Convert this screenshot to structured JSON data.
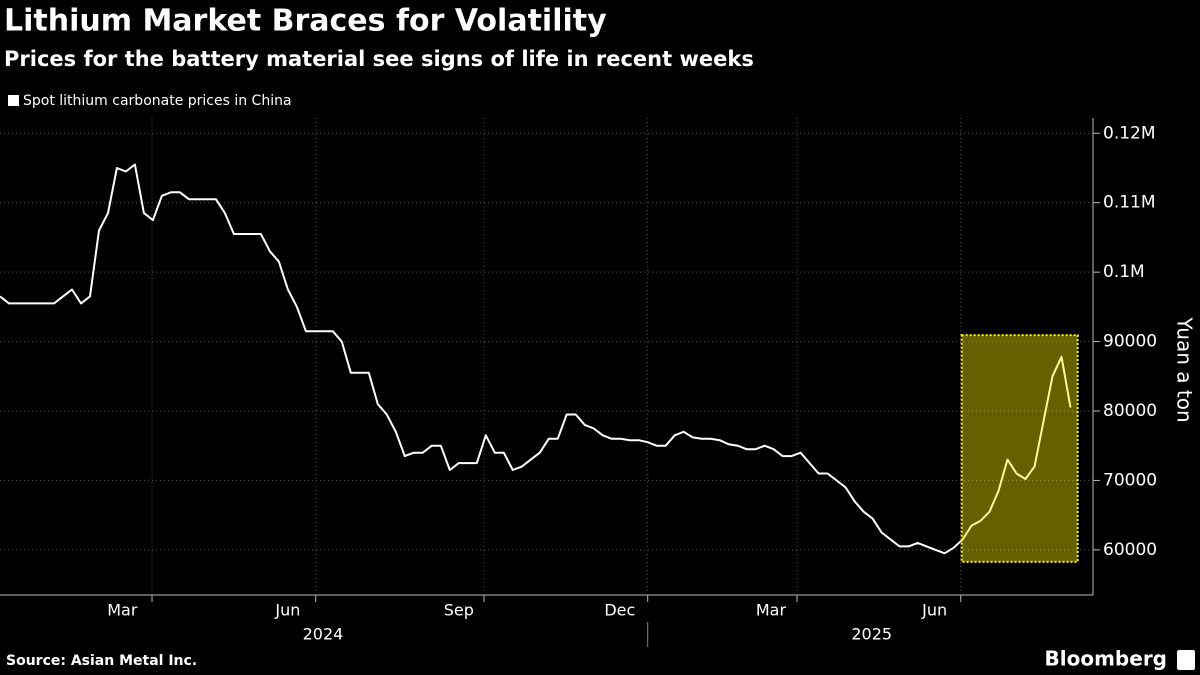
{
  "chart_data": {
    "type": "line",
    "title": "Lithium Market Braces for Volatility",
    "subtitle": "Prices for the battery material see signs of life in recent weeks",
    "y_label": "Yuan a ton",
    "source": "Source: Asian Metal Inc.",
    "brand": "Bloomberg",
    "series": [
      {
        "name": "Spot lithium carbonate prices in China",
        "color": "#ffffff",
        "values": [
          96500,
          95500,
          95500,
          95500,
          95500,
          95500,
          95500,
          96500,
          97500,
          95500,
          96500,
          106000,
          108500,
          115000,
          114500,
          115500,
          108500,
          107500,
          111000,
          111500,
          111500,
          110500,
          110500,
          110500,
          110500,
          108500,
          105500,
          105500,
          105500,
          105500,
          103000,
          101500,
          97500,
          95000,
          91500,
          91500,
          91500,
          91500,
          90000,
          85500,
          85500,
          85500,
          81000,
          79500,
          77000,
          73500,
          74000,
          74000,
          75000,
          75000,
          71500,
          72500,
          72500,
          72500,
          76500,
          74000,
          74000,
          71500,
          72000,
          73000,
          74000,
          76000,
          76000,
          79500,
          79500,
          78000,
          77500,
          76500,
          76000,
          76000,
          75800,
          75800,
          75500,
          75000,
          75000,
          76500,
          77000,
          76200,
          76000,
          76000,
          75800,
          75200,
          75000,
          74500,
          74500,
          75000,
          74500,
          73500,
          73500,
          74000,
          72500,
          71000,
          71000,
          70000,
          69000,
          67000,
          65500,
          64500,
          62500,
          61500,
          60500,
          60500,
          61000,
          60500,
          60000,
          59500,
          60300,
          61500,
          63500,
          64200,
          65500,
          68500,
          73000,
          71000,
          70200,
          72000,
          78500,
          85000,
          87800,
          80500
        ]
      }
    ],
    "xlim": [
      0,
      121.5
    ],
    "xticks": [
      16.9,
      35.1,
      53.8,
      72,
      88.6,
      106.8
    ],
    "xlabels": [
      {
        "value": 13.6,
        "label": "Mar"
      },
      {
        "value": 32,
        "label": "Jun"
      },
      {
        "value": 51,
        "label": "Sep"
      },
      {
        "value": 68.9,
        "label": "Dec"
      },
      {
        "value": 85.7,
        "label": "Mar"
      },
      {
        "value": 103.9,
        "label": "Jun"
      }
    ],
    "year_labels": [
      {
        "value": 35.9,
        "label": "2024"
      },
      {
        "value": 96.9,
        "label": "2025"
      }
    ],
    "year_divider": 72,
    "ylim": [
      53500,
      122200
    ],
    "yticks": [
      60000,
      70000,
      80000,
      90000,
      {
        "value": 100000,
        "label": "0.1M"
      },
      {
        "value": 110000,
        "label": "0.11M"
      },
      {
        "value": 120000,
        "label": "0.12M"
      }
    ],
    "grid": true,
    "highlight": {
      "x": [
        106.9,
        119.8
      ],
      "y": [
        58270,
        90935
      ],
      "color": "#fff200"
    }
  }
}
